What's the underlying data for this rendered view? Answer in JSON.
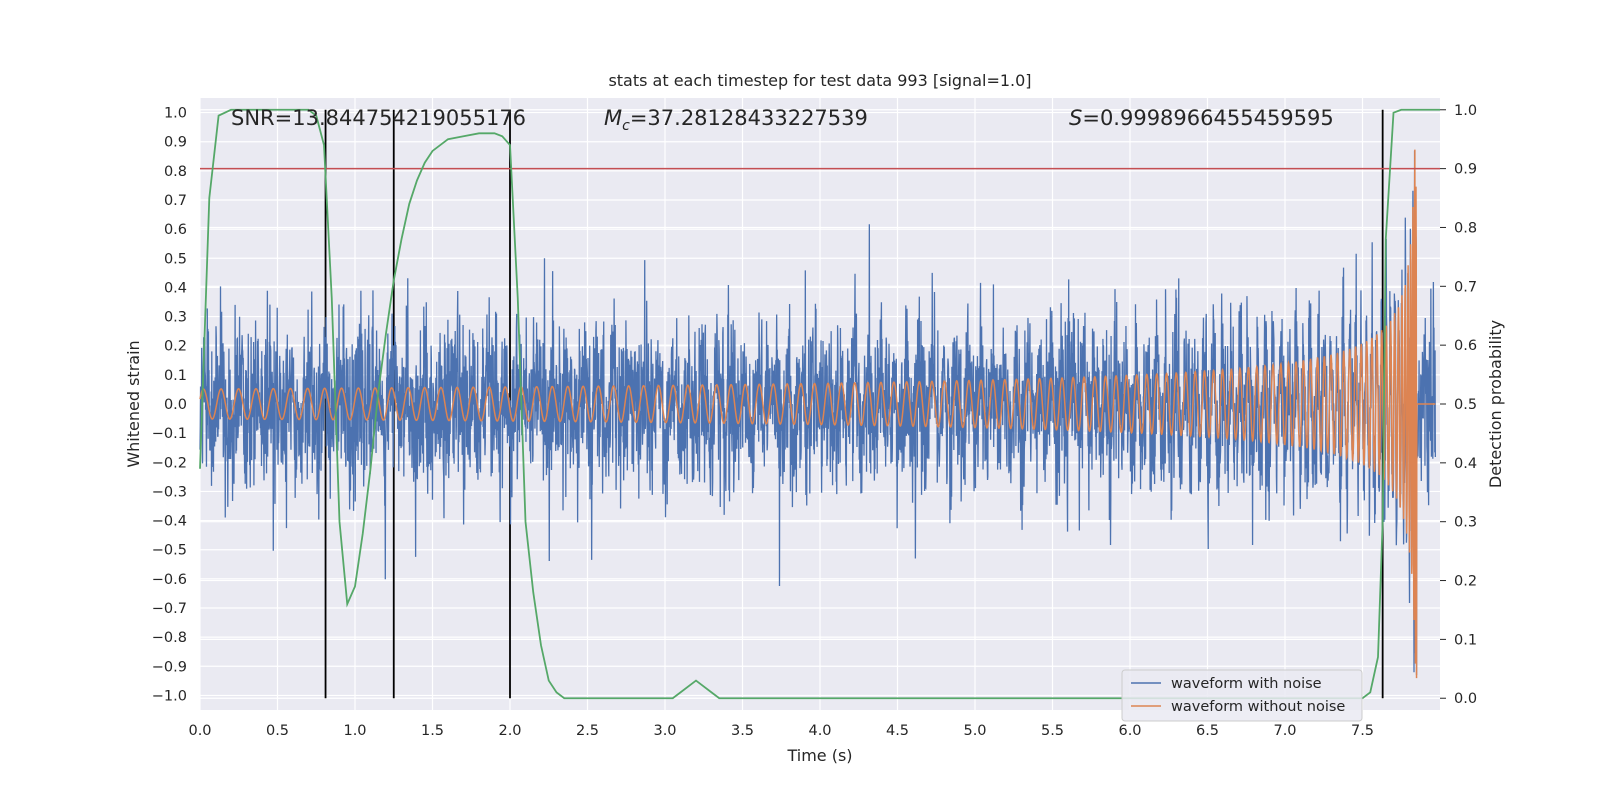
{
  "chart_data": {
    "type": "line",
    "title": "stats at each timestep for test data 993 [signal=1.0]",
    "xlabel": "Time (s)",
    "ylabel": "Whitened strain",
    "y2label": "Detection probability",
    "xlim": [
      0.0,
      8.0
    ],
    "ylim": [
      -1.05,
      1.05
    ],
    "y2lim": [
      -0.02,
      1.02
    ],
    "grid": true,
    "legend_position": "bottom-right",
    "x_ticks": [
      "0.0",
      "0.5",
      "1.0",
      "1.5",
      "2.0",
      "2.5",
      "3.0",
      "3.5",
      "4.0",
      "4.5",
      "5.0",
      "5.5",
      "6.0",
      "6.5",
      "7.0",
      "7.5"
    ],
    "y_ticks": [
      "1.0",
      "0.9",
      "0.8",
      "0.7",
      "0.6",
      "0.5",
      "0.4",
      "0.3",
      "0.2",
      "0.1",
      "0.0",
      "−0.1",
      "−0.2",
      "−0.3",
      "−0.4",
      "−0.5",
      "−0.6",
      "−0.7",
      "−0.8",
      "−0.9",
      "−1.0"
    ],
    "y2_ticks": [
      "1.0",
      "0.9",
      "0.8",
      "0.7",
      "0.6",
      "0.5",
      "0.4",
      "0.3",
      "0.2",
      "0.1",
      "0.0"
    ],
    "annotations": {
      "snr": "SNR=13.844754219055176",
      "mc_symbol": "M",
      "mc_sub": "c",
      "mc_value": "=37.28128433227539",
      "s_symbol": "S",
      "s_value": "=0.9998966455459595"
    },
    "threshold_y2": 0.9,
    "vertical_lines_x": [
      0.81,
      1.25,
      2.0,
      7.63
    ],
    "series": [
      {
        "name": "waveform with noise",
        "color": "#4c72b0",
        "typical_amplitude": 0.16,
        "max_abs": 1.0
      },
      {
        "name": "waveform without noise",
        "color": "#dd8452",
        "merger_time": 7.85,
        "peak": 0.95
      },
      {
        "color": "#55a868",
        "x": [
          0.0,
          0.06,
          0.12,
          0.2,
          0.3,
          0.4,
          0.5,
          0.6,
          0.7,
          0.75,
          0.8,
          0.85,
          0.9,
          0.95,
          1.0,
          1.05,
          1.1,
          1.15,
          1.2,
          1.25,
          1.3,
          1.35,
          1.4,
          1.45,
          1.5,
          1.6,
          1.7,
          1.8,
          1.9,
          1.95,
          2.0,
          2.05,
          2.1,
          2.15,
          2.2,
          2.25,
          2.3,
          2.35,
          2.4,
          2.5,
          2.6,
          2.7,
          2.8,
          2.9,
          3.0,
          3.05,
          3.1,
          3.2,
          3.3,
          3.35,
          3.4,
          3.5,
          4.0,
          5.0,
          6.0,
          7.0,
          7.5,
          7.55,
          7.6,
          7.63,
          7.65,
          7.7,
          7.75,
          7.8,
          7.85,
          8.0
        ],
        "y": [
          0.39,
          0.85,
          0.99,
          1.0,
          1.0,
          1.0,
          1.0,
          1.0,
          1.0,
          0.99,
          0.94,
          0.68,
          0.3,
          0.16,
          0.19,
          0.28,
          0.39,
          0.52,
          0.62,
          0.71,
          0.78,
          0.84,
          0.88,
          0.91,
          0.93,
          0.95,
          0.955,
          0.96,
          0.96,
          0.955,
          0.94,
          0.68,
          0.3,
          0.18,
          0.09,
          0.03,
          0.01,
          0.0,
          0.0,
          0.0,
          0.0,
          0.0,
          0.0,
          0.0,
          0.0,
          0.0,
          0.01,
          0.03,
          0.01,
          0.0,
          0.0,
          0.0,
          0.0,
          0.0,
          0.0,
          0.0,
          0.0,
          0.01,
          0.07,
          0.3,
          0.78,
          0.995,
          1.0,
          1.0,
          1.0,
          1.0
        ]
      }
    ]
  }
}
